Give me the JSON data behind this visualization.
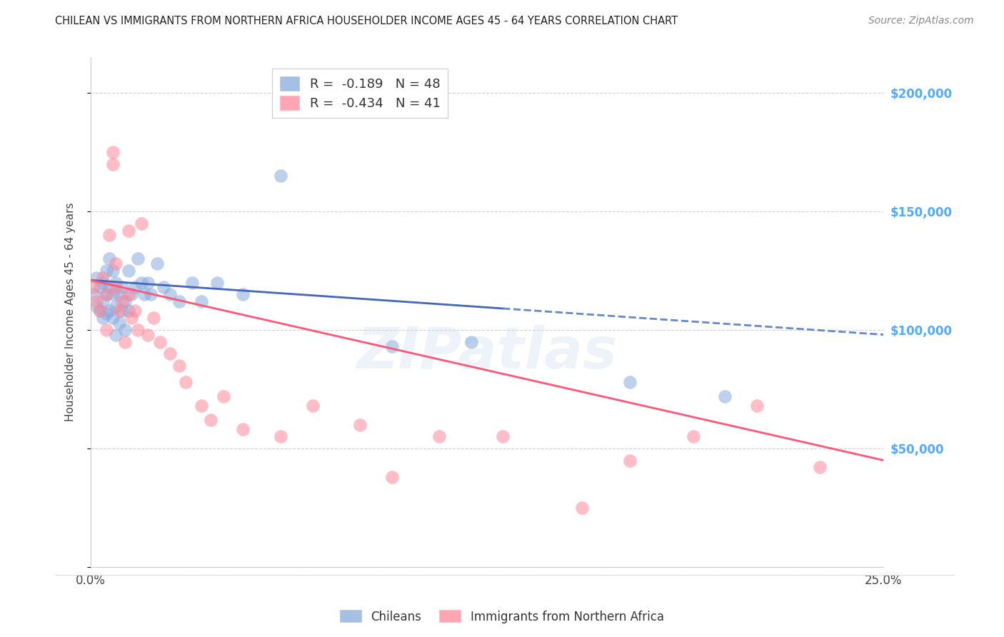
{
  "title": "CHILEAN VS IMMIGRANTS FROM NORTHERN AFRICA HOUSEHOLDER INCOME AGES 45 - 64 YEARS CORRELATION CHART",
  "source": "Source: ZipAtlas.com",
  "ylabel": "Householder Income Ages 45 - 64 years",
  "xlim": [
    0.0,
    0.25
  ],
  "ylim": [
    0,
    215000
  ],
  "yticks": [
    0,
    50000,
    100000,
    150000,
    200000
  ],
  "ytick_labels": [
    "",
    "$50,000",
    "$100,000",
    "$150,000",
    "$200,000"
  ],
  "xticks": [
    0.0,
    0.05,
    0.1,
    0.15,
    0.2,
    0.25
  ],
  "xtick_labels": [
    "0.0%",
    "",
    "",
    "",
    "",
    "25.0%"
  ],
  "blue_R": -0.189,
  "blue_N": 48,
  "pink_R": -0.434,
  "pink_N": 41,
  "blue_color": "#88AADD",
  "pink_color": "#FF8899",
  "trend_blue_solid_color": "#4466BB",
  "trend_blue_dashed_color": "#6688CC",
  "trend_pink_color": "#FF5577",
  "watermark": "ZIPatlas",
  "background_color": "#FFFFFF",
  "blue_x": [
    0.001,
    0.002,
    0.002,
    0.003,
    0.003,
    0.004,
    0.004,
    0.004,
    0.005,
    0.005,
    0.005,
    0.006,
    0.006,
    0.006,
    0.007,
    0.007,
    0.007,
    0.008,
    0.008,
    0.008,
    0.009,
    0.009,
    0.01,
    0.01,
    0.011,
    0.011,
    0.012,
    0.012,
    0.013,
    0.014,
    0.015,
    0.016,
    0.017,
    0.018,
    0.019,
    0.021,
    0.023,
    0.025,
    0.028,
    0.032,
    0.035,
    0.04,
    0.048,
    0.06,
    0.095,
    0.12,
    0.17,
    0.2
  ],
  "blue_y": [
    115000,
    122000,
    110000,
    118000,
    108000,
    120000,
    112000,
    105000,
    125000,
    115000,
    107000,
    130000,
    118000,
    108000,
    125000,
    115000,
    105000,
    120000,
    110000,
    98000,
    115000,
    103000,
    118000,
    108000,
    112000,
    100000,
    125000,
    108000,
    115000,
    118000,
    130000,
    120000,
    115000,
    120000,
    115000,
    128000,
    118000,
    115000,
    112000,
    120000,
    112000,
    120000,
    115000,
    165000,
    93000,
    95000,
    78000,
    72000
  ],
  "pink_x": [
    0.001,
    0.002,
    0.003,
    0.004,
    0.005,
    0.005,
    0.006,
    0.007,
    0.007,
    0.008,
    0.008,
    0.009,
    0.01,
    0.011,
    0.012,
    0.012,
    0.013,
    0.014,
    0.015,
    0.016,
    0.018,
    0.02,
    0.022,
    0.025,
    0.028,
    0.03,
    0.035,
    0.038,
    0.042,
    0.048,
    0.06,
    0.07,
    0.085,
    0.095,
    0.11,
    0.13,
    0.155,
    0.17,
    0.19,
    0.21,
    0.23
  ],
  "pink_y": [
    118000,
    112000,
    108000,
    122000,
    115000,
    100000,
    140000,
    175000,
    170000,
    128000,
    118000,
    108000,
    112000,
    95000,
    142000,
    115000,
    105000,
    108000,
    100000,
    145000,
    98000,
    105000,
    95000,
    90000,
    85000,
    78000,
    68000,
    62000,
    72000,
    58000,
    55000,
    68000,
    60000,
    38000,
    55000,
    55000,
    25000,
    45000,
    55000,
    68000,
    42000
  ]
}
